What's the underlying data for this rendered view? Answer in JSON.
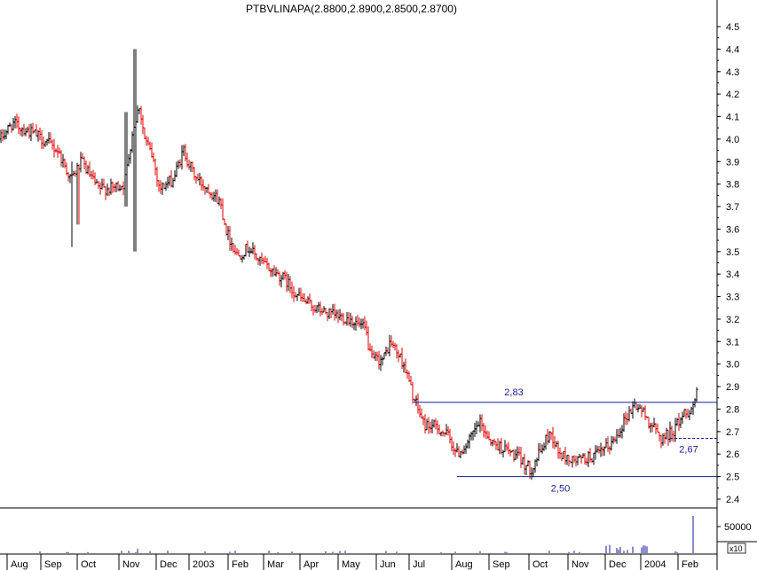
{
  "chart_data": {
    "type": "candlestick",
    "title": "PTBVLINAPA(2.8800,2.8900,2.8500,2.8700)",
    "y_axis": {
      "position": "right",
      "ylim": [
        2.3,
        4.6
      ],
      "ticks": [
        "4.5",
        "4.4",
        "4.3",
        "4.2",
        "4.1",
        "4.0",
        "3.9",
        "3.8",
        "3.7",
        "3.6",
        "3.5",
        "3.4",
        "3.3",
        "3.2",
        "3.1",
        "3.0",
        "2.9",
        "2.8",
        "2.7",
        "2.6",
        "2.5",
        "2.4"
      ]
    },
    "x_axis": {
      "labels": [
        "Aug",
        "Sep",
        "Oct",
        "Nov",
        "Dec",
        "2003",
        "Feb",
        "Mar",
        "Apr",
        "May",
        "Jun",
        "Jul",
        "Aug",
        "Sep",
        "Oct",
        "Nov",
        "Dec",
        "2004",
        "Feb"
      ]
    },
    "volume": {
      "tick_label": "50000",
      "scale_label": "x10"
    },
    "colors": {
      "up": "#000000",
      "down": "#e00000",
      "lines": "#1a1aa0",
      "volume": "#1a1aa0"
    },
    "grid": false,
    "price_anchors": [
      [
        0,
        4.0
      ],
      [
        14,
        4.07
      ],
      [
        40,
        4.02
      ],
      [
        65,
        3.95
      ],
      [
        80,
        3.82
      ],
      [
        92,
        3.9
      ],
      [
        110,
        3.78
      ],
      [
        125,
        3.78
      ],
      [
        140,
        3.8
      ],
      [
        150,
        4.05
      ],
      [
        157,
        4.15
      ],
      [
        163,
        4.0
      ],
      [
        172,
        3.92
      ],
      [
        180,
        3.78
      ],
      [
        195,
        3.82
      ],
      [
        207,
        3.95
      ],
      [
        214,
        3.88
      ],
      [
        222,
        3.82
      ],
      [
        235,
        3.78
      ],
      [
        248,
        3.72
      ],
      [
        256,
        3.58
      ],
      [
        268,
        3.48
      ],
      [
        280,
        3.52
      ],
      [
        292,
        3.46
      ],
      [
        305,
        3.42
      ],
      [
        320,
        3.38
      ],
      [
        332,
        3.32
      ],
      [
        342,
        3.28
      ],
      [
        355,
        3.25
      ],
      [
        372,
        3.22
      ],
      [
        395,
        3.2
      ],
      [
        412,
        3.15
      ],
      [
        418,
        3.02
      ],
      [
        432,
        3.02
      ],
      [
        440,
        3.1
      ],
      [
        455,
        3.0
      ],
      [
        466,
        2.85
      ],
      [
        478,
        2.73
      ],
      [
        492,
        2.72
      ],
      [
        505,
        2.68
      ],
      [
        515,
        2.6
      ],
      [
        528,
        2.65
      ],
      [
        540,
        2.74
      ],
      [
        555,
        2.65
      ],
      [
        570,
        2.62
      ],
      [
        585,
        2.58
      ],
      [
        598,
        2.53
      ],
      [
        610,
        2.62
      ],
      [
        620,
        2.7
      ],
      [
        630,
        2.6
      ],
      [
        645,
        2.57
      ],
      [
        660,
        2.58
      ],
      [
        675,
        2.6
      ],
      [
        690,
        2.65
      ],
      [
        705,
        2.76
      ],
      [
        715,
        2.82
      ],
      [
        722,
        2.8
      ],
      [
        732,
        2.74
      ],
      [
        745,
        2.67
      ],
      [
        758,
        2.7
      ],
      [
        770,
        2.78
      ],
      [
        780,
        2.8
      ],
      [
        785,
        2.88
      ]
    ],
    "spikes": [
      {
        "day": 152,
        "high": 4.4,
        "low": 3.5
      },
      {
        "day": 81,
        "high": 3.9,
        "low": 3.52
      },
      {
        "day": 88,
        "high": 3.85,
        "low": 3.62
      },
      {
        "day": 142,
        "high": 4.12,
        "low": 3.7
      }
    ],
    "annotations": [
      {
        "type": "hline",
        "value": 2.83,
        "x_from": 466,
        "x_to": 808,
        "style": "solid",
        "label": "2,83"
      },
      {
        "type": "hline",
        "value": 2.5,
        "x_from": 515,
        "x_to": 808,
        "style": "solid",
        "label": "2,50"
      },
      {
        "type": "hline",
        "value": 2.67,
        "x_from": 755,
        "x_to": 808,
        "style": "dashed",
        "label": "2,67"
      }
    ]
  }
}
